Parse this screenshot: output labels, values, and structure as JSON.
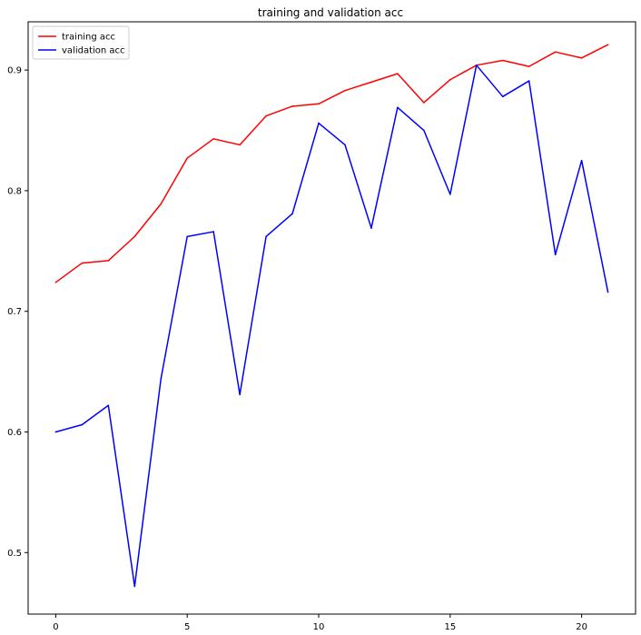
{
  "chart_data": {
    "type": "line",
    "title": "training and validation acc",
    "xlabel": "",
    "ylabel": "",
    "x": [
      0,
      1,
      2,
      3,
      4,
      5,
      6,
      7,
      8,
      9,
      10,
      11,
      12,
      13,
      14,
      15,
      16,
      17,
      18,
      19,
      20,
      21
    ],
    "xlim": [
      -1.05,
      22.05
    ],
    "ylim": [
      0.449,
      0.94
    ],
    "xticks": [
      0,
      5,
      10,
      15,
      20
    ],
    "yticks": [
      0.5,
      0.6,
      0.7,
      0.8,
      0.9
    ],
    "ytick_labels": [
      "0.5",
      "0.6",
      "0.7",
      "0.8",
      "0.9"
    ],
    "grid": false,
    "legend": "top-left",
    "series": [
      {
        "name": "training acc",
        "color": "#ff0000",
        "values": [
          0.724,
          0.74,
          0.742,
          0.762,
          0.789,
          0.827,
          0.843,
          0.838,
          0.862,
          0.87,
          0.872,
          0.883,
          0.89,
          0.897,
          0.873,
          0.892,
          0.904,
          0.908,
          0.903,
          0.915,
          0.91,
          0.921
        ]
      },
      {
        "name": "validation acc",
        "color": "#0000ff",
        "values": [
          0.6,
          0.606,
          0.622,
          0.472,
          0.644,
          0.762,
          0.766,
          0.631,
          0.762,
          0.781,
          0.856,
          0.838,
          0.769,
          0.869,
          0.85,
          0.797,
          0.904,
          0.878,
          0.891,
          0.747,
          0.825,
          0.716
        ]
      }
    ]
  }
}
